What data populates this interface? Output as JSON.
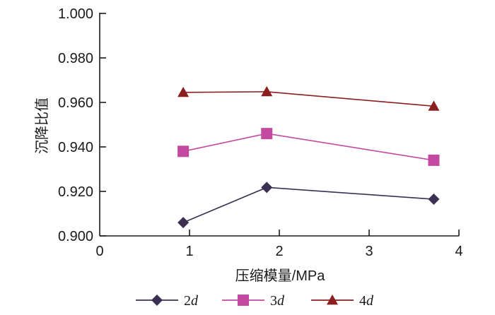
{
  "chart_data": {
    "type": "line",
    "xlabel": "压缩模量/MPa",
    "ylabel": "沉降比值",
    "xlim": [
      0,
      4
    ],
    "ylim": [
      0.9,
      1.0
    ],
    "x_ticks": [
      0,
      1,
      2,
      3,
      4
    ],
    "x_tick_labels": [
      "0",
      "1",
      "2",
      "3",
      "4"
    ],
    "y_ticks": [
      0.9,
      0.92,
      0.94,
      0.96,
      0.98,
      1.0
    ],
    "y_tick_labels": [
      "0.900",
      "0.920",
      "0.940",
      "0.960",
      "0.980",
      "1.000"
    ],
    "grid": false,
    "legend_position": "bottom",
    "series": [
      {
        "name": "2d",
        "name_num": "2",
        "name_var": "d",
        "color": "#3b2f52",
        "marker": "diamond",
        "x": [
          0.93,
          1.86,
          3.72
        ],
        "values": [
          0.906,
          0.9218,
          0.9165
        ]
      },
      {
        "name": "3d",
        "name_num": "3",
        "name_var": "d",
        "color": "#c34aa0",
        "marker": "square",
        "x": [
          0.93,
          1.86,
          3.72
        ],
        "values": [
          0.938,
          0.946,
          0.934
        ]
      },
      {
        "name": "4d",
        "name_num": "4",
        "name_var": "d",
        "color": "#8b1e1e",
        "marker": "triangle",
        "x": [
          0.93,
          1.86,
          3.72
        ],
        "values": [
          0.9645,
          0.9648,
          0.9583
        ]
      }
    ]
  }
}
